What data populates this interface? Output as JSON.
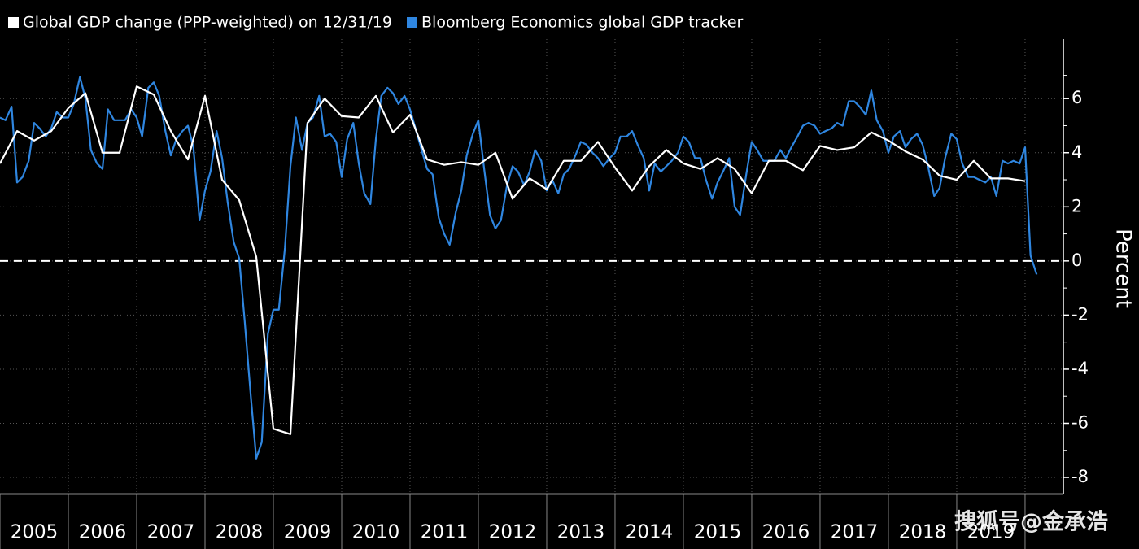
{
  "chart_data": {
    "type": "line",
    "ylabel": "Percent",
    "watermark": "搜狐号@金承浩",
    "xlim": [
      2005,
      2020.56
    ],
    "xticks": [
      2005,
      2006,
      2007,
      2008,
      2009,
      2010,
      2011,
      2012,
      2013,
      2014,
      2015,
      2016,
      2017,
      2018,
      2019,
      2020
    ],
    "x_labels": [
      "2005",
      "2006",
      "2007",
      "2008",
      "2009",
      "2010",
      "2011",
      "2012",
      "2013",
      "2014",
      "2015",
      "2016",
      "2017",
      "2018",
      "2019"
    ],
    "ylim": [
      -8.6,
      8.2
    ],
    "yticks": [
      -8,
      -6,
      -4,
      -2,
      0,
      2,
      4,
      6
    ],
    "zero_line": 0,
    "grid": true,
    "series": [
      {
        "name": "Global GDP change (PPP-weighted) on 12/31/19",
        "color": "#ffffff",
        "x": [
          2005,
          2005.25,
          2005.5,
          2005.75,
          2006,
          2006.25,
          2006.5,
          2006.75,
          2007,
          2007.25,
          2007.5,
          2007.75,
          2008,
          2008.25,
          2008.5,
          2008.75,
          2009,
          2009.25,
          2009.5,
          2009.75,
          2010,
          2010.25,
          2010.5,
          2010.75,
          2011,
          2011.25,
          2011.5,
          2011.75,
          2012,
          2012.25,
          2012.5,
          2012.75,
          2013,
          2013.25,
          2013.5,
          2013.75,
          2014,
          2014.25,
          2014.5,
          2014.75,
          2015,
          2015.25,
          2015.5,
          2015.75,
          2016,
          2016.25,
          2016.5,
          2016.75,
          2017,
          2017.25,
          2017.5,
          2017.75,
          2018,
          2018.25,
          2018.5,
          2018.75,
          2019,
          2019.25,
          2019.5,
          2019.75,
          2020
        ],
        "values": [
          3.6,
          4.8,
          4.45,
          4.8,
          5.65,
          6.2,
          4.0,
          4.0,
          6.45,
          6.15,
          4.8,
          3.75,
          6.1,
          3.0,
          2.25,
          0.15,
          -6.2,
          -6.4,
          5.1,
          6.0,
          5.35,
          5.3,
          6.1,
          4.75,
          5.4,
          3.75,
          3.55,
          3.65,
          3.55,
          4.0,
          2.3,
          3.05,
          2.65,
          3.7,
          3.7,
          4.4,
          3.45,
          2.6,
          3.5,
          4.1,
          3.6,
          3.4,
          3.8,
          3.4,
          2.5,
          3.7,
          3.7,
          3.35,
          4.25,
          4.1,
          4.2,
          4.75,
          4.45,
          4.05,
          3.75,
          3.15,
          3.0,
          3.7,
          3.05,
          3.05,
          2.95
        ]
      },
      {
        "name": "Bloomberg Economics global GDP tracker",
        "color": "#2f86e0",
        "x": [
          2005,
          2005.08,
          2005.17,
          2005.25,
          2005.33,
          2005.42,
          2005.5,
          2005.58,
          2005.67,
          2005.75,
          2005.83,
          2005.92,
          2006,
          2006.08,
          2006.17,
          2006.25,
          2006.33,
          2006.42,
          2006.5,
          2006.58,
          2006.67,
          2006.75,
          2006.83,
          2006.92,
          2007,
          2007.08,
          2007.17,
          2007.25,
          2007.33,
          2007.42,
          2007.5,
          2007.58,
          2007.67,
          2007.75,
          2007.83,
          2007.92,
          2008,
          2008.08,
          2008.17,
          2008.25,
          2008.33,
          2008.42,
          2008.5,
          2008.58,
          2008.67,
          2008.75,
          2008.83,
          2008.92,
          2009,
          2009.08,
          2009.17,
          2009.25,
          2009.33,
          2009.42,
          2009.5,
          2009.58,
          2009.67,
          2009.75,
          2009.83,
          2009.92,
          2010,
          2010.08,
          2010.17,
          2010.25,
          2010.33,
          2010.42,
          2010.5,
          2010.58,
          2010.67,
          2010.75,
          2010.83,
          2010.92,
          2011,
          2011.08,
          2011.17,
          2011.25,
          2011.33,
          2011.42,
          2011.5,
          2011.58,
          2011.67,
          2011.75,
          2011.83,
          2011.92,
          2012,
          2012.08,
          2012.17,
          2012.25,
          2012.33,
          2012.42,
          2012.5,
          2012.58,
          2012.67,
          2012.75,
          2012.83,
          2012.92,
          2013,
          2013.08,
          2013.17,
          2013.25,
          2013.33,
          2013.42,
          2013.5,
          2013.58,
          2013.67,
          2013.75,
          2013.83,
          2013.92,
          2014,
          2014.08,
          2014.17,
          2014.25,
          2014.33,
          2014.42,
          2014.5,
          2014.58,
          2014.67,
          2014.75,
          2014.83,
          2014.92,
          2015,
          2015.08,
          2015.17,
          2015.25,
          2015.33,
          2015.42,
          2015.5,
          2015.58,
          2015.67,
          2015.75,
          2015.83,
          2015.92,
          2016,
          2016.08,
          2016.17,
          2016.25,
          2016.33,
          2016.42,
          2016.5,
          2016.58,
          2016.67,
          2016.75,
          2016.83,
          2016.92,
          2017,
          2017.08,
          2017.17,
          2017.25,
          2017.33,
          2017.42,
          2017.5,
          2017.58,
          2017.67,
          2017.75,
          2017.83,
          2017.92,
          2018,
          2018.08,
          2018.17,
          2018.25,
          2018.33,
          2018.42,
          2018.5,
          2018.58,
          2018.67,
          2018.75,
          2018.83,
          2018.92,
          2019,
          2019.08,
          2019.17,
          2019.25,
          2019.33,
          2019.42,
          2019.5,
          2019.58,
          2019.67,
          2019.75,
          2019.83,
          2019.92,
          2020,
          2020.08,
          2020.17
        ],
        "values": [
          5.3,
          5.2,
          5.7,
          2.9,
          3.1,
          3.7,
          5.1,
          4.9,
          4.6,
          4.9,
          5.5,
          5.3,
          5.3,
          5.8,
          6.8,
          6.0,
          4.1,
          3.6,
          3.4,
          5.6,
          5.2,
          5.2,
          5.2,
          5.6,
          5.3,
          4.6,
          6.4,
          6.6,
          6.1,
          4.8,
          3.9,
          4.5,
          4.8,
          5.0,
          4.2,
          1.5,
          2.6,
          3.3,
          4.8,
          3.8,
          2.2,
          0.7,
          0.1,
          -2.2,
          -5.0,
          -7.3,
          -6.7,
          -2.7,
          -1.8,
          -1.8,
          0.5,
          3.5,
          5.3,
          4.1,
          5.1,
          5.3,
          6.1,
          4.6,
          4.7,
          4.4,
          3.1,
          4.5,
          5.1,
          3.6,
          2.5,
          2.1,
          4.5,
          6.1,
          6.4,
          6.2,
          5.8,
          6.1,
          5.6,
          4.9,
          4.1,
          3.4,
          3.2,
          1.6,
          1.0,
          0.6,
          1.8,
          2.6,
          3.9,
          4.7,
          5.2,
          3.5,
          1.7,
          1.2,
          1.5,
          2.8,
          3.5,
          3.3,
          2.8,
          3.3,
          4.1,
          3.7,
          2.6,
          3.0,
          2.5,
          3.2,
          3.4,
          3.9,
          4.4,
          4.3,
          4.0,
          3.8,
          3.5,
          3.8,
          4.0,
          4.6,
          4.6,
          4.8,
          4.3,
          3.8,
          2.6,
          3.6,
          3.3,
          3.5,
          3.7,
          4.0,
          4.6,
          4.4,
          3.8,
          3.8,
          3.0,
          2.3,
          2.9,
          3.3,
          3.8,
          2.0,
          1.7,
          3.2,
          4.4,
          4.1,
          3.7,
          3.7,
          3.7,
          4.1,
          3.8,
          4.2,
          4.6,
          5.0,
          5.1,
          5.0,
          4.7,
          4.8,
          4.9,
          5.1,
          5.0,
          5.9,
          5.9,
          5.7,
          5.4,
          6.3,
          5.2,
          4.8,
          4.0,
          4.6,
          4.8,
          4.2,
          4.5,
          4.7,
          4.3,
          3.5,
          2.4,
          2.7,
          3.8,
          4.7,
          4.5,
          3.6,
          3.1,
          3.1,
          3.0,
          2.9,
          3.1,
          2.4,
          3.7,
          3.6,
          3.7,
          3.6,
          4.2,
          0.2,
          -0.5
        ]
      }
    ]
  }
}
